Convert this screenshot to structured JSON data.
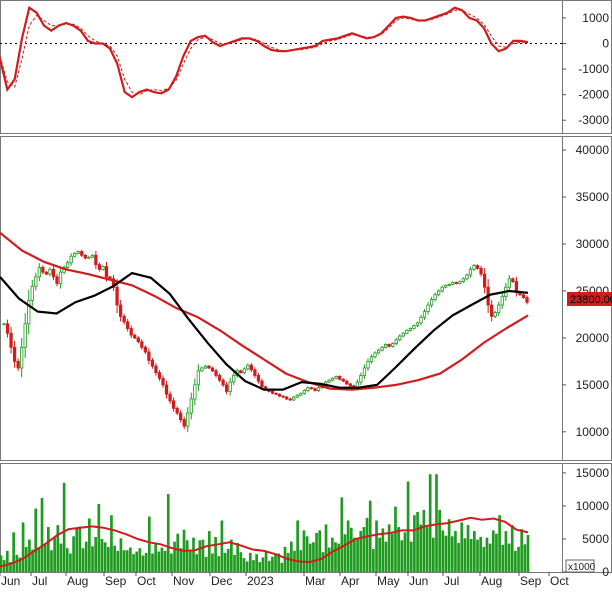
{
  "colors": {
    "red": "#d01c1c",
    "black": "#000000",
    "green": "#1f9c1f",
    "green_dark": "#0b6e0b",
    "grid_axis": "#777777",
    "price_tag_bg": "#d01c1c"
  },
  "x_axis": {
    "labels": [
      "Jun",
      "Jul",
      "Aug",
      "Sep",
      "Oct",
      "Nov",
      "Dec",
      "2023",
      "Mar",
      "Apr",
      "May",
      "Jun",
      "Jul",
      "Aug",
      "Sep",
      "Oct"
    ]
  },
  "chart_data": [
    {
      "type": "line",
      "panel": "oscillator",
      "yticks": [
        1000,
        0,
        -1000,
        -2000,
        -3000
      ],
      "ylim": [
        -3500,
        1700
      ],
      "zero_line": "dotted",
      "series": [
        {
          "style": "solid",
          "color": "red",
          "values": [
            -600,
            -1800,
            -1400,
            200,
            1400,
            1200,
            700,
            500,
            700,
            800,
            700,
            500,
            100,
            0,
            0,
            -200,
            -800,
            -1900,
            -2100,
            -1900,
            -1800,
            -1900,
            -1950,
            -1800,
            -1300,
            -500,
            100,
            250,
            300,
            50,
            -100,
            0,
            100,
            200,
            200,
            100,
            -100,
            -250,
            -300,
            -300,
            -250,
            -200,
            -150,
            -100,
            100,
            150,
            200,
            300,
            400,
            300,
            200,
            250,
            400,
            700,
            1000,
            1050,
            1000,
            900,
            900,
            1000,
            1100,
            1200,
            1400,
            1300,
            1000,
            900,
            600,
            0,
            -300,
            -200,
            100,
            100,
            50
          ]
        },
        {
          "style": "dashed",
          "color": "red",
          "values": [
            -500,
            -1500,
            -1700,
            -600,
            700,
            1100,
            900,
            700,
            700,
            750,
            750,
            600,
            300,
            100,
            0,
            -100,
            -500,
            -1400,
            -1900,
            -2000,
            -1850,
            -1800,
            -1850,
            -1750,
            -1450,
            -800,
            -200,
            150,
            250,
            150,
            0,
            0,
            50,
            150,
            200,
            150,
            0,
            -150,
            -250,
            -300,
            -250,
            -250,
            -200,
            -150,
            0,
            100,
            150,
            250,
            350,
            300,
            250,
            250,
            350,
            600,
            900,
            1000,
            950,
            900,
            900,
            950,
            1050,
            1150,
            1300,
            1300,
            1150,
            1000,
            750,
            300,
            -100,
            -150,
            0,
            50,
            50
          ]
        }
      ]
    },
    {
      "type": "candlestick",
      "panel": "price",
      "yticks": [
        40000,
        35000,
        30000,
        25000,
        20000,
        15000,
        10000
      ],
      "ylim": [
        7000,
        41500
      ],
      "last_price_label": "23800.00",
      "closes": [
        21500,
        20500,
        19000,
        17500,
        16800,
        19000,
        21500,
        24000,
        25500,
        26500,
        27500,
        27000,
        26800,
        27300,
        26500,
        25800,
        27000,
        27500,
        28000,
        28700,
        29000,
        29200,
        28800,
        28500,
        28600,
        28800,
        27800,
        27300,
        27600,
        26500,
        26300,
        25400,
        23500,
        22300,
        21700,
        21000,
        20300,
        20000,
        19600,
        19000,
        18500,
        17600,
        17000,
        16300,
        15700,
        15000,
        14000,
        13300,
        12500,
        12000,
        11300,
        10600,
        12000,
        13500,
        15000,
        16500,
        16800,
        17000,
        16800,
        16500,
        16000,
        15500,
        15000,
        14300,
        15300,
        16000,
        16500,
        16300,
        16700,
        17100,
        16600,
        16000,
        15400,
        14800,
        14500,
        14300,
        14100,
        14000,
        13800,
        13700,
        13500,
        13400,
        13700,
        13900,
        14100,
        14400,
        14700,
        14600,
        14400,
        14700,
        15000,
        15300,
        15500,
        15700,
        15900,
        15600,
        15400,
        15100,
        14900,
        14700,
        15300,
        16000,
        16800,
        17500,
        18000,
        18400,
        18700,
        19000,
        19300,
        19100,
        19400,
        19800,
        20200,
        20500,
        20800,
        21000,
        21300,
        21600,
        22200,
        22800,
        23500,
        24100,
        24600,
        25000,
        25400,
        25600,
        25700,
        25900,
        25800,
        26000,
        26300,
        26700,
        27300,
        27700,
        27400,
        26800,
        25400,
        23500,
        22300,
        22700,
        23500,
        24400,
        25400,
        26300,
        26000,
        24900,
        24600,
        24300,
        23800
      ],
      "ma_short": {
        "color": "black",
        "values": [
          26500,
          24200,
          22800,
          22600,
          23800,
          24500,
          25500,
          26900,
          26400,
          24700,
          22000,
          19500,
          17200,
          15400,
          14500,
          14500,
          15300,
          15100,
          14700,
          14700,
          15000,
          16900,
          18900,
          20800,
          22400,
          23500,
          24600,
          25000,
          24800
        ]
      },
      "ma_long": {
        "color": "red",
        "values": [
          31200,
          29300,
          28100,
          27300,
          26800,
          26200,
          25600,
          24500,
          23200,
          22200,
          20800,
          19200,
          17700,
          16200,
          15300,
          14600,
          14500,
          14700,
          15000,
          15500,
          16200,
          17700,
          19500,
          21000,
          22400
        ]
      }
    },
    {
      "type": "bar",
      "panel": "volume",
      "unit_label": "x1000",
      "yticks": [
        15000,
        10000,
        5000,
        0
      ],
      "ylim": [
        0,
        16500
      ],
      "values": [
        2500,
        1800,
        3200,
        1500,
        6000,
        2600,
        2200,
        7500,
        3800,
        4900,
        3400,
        9600,
        3700,
        11200,
        4200,
        6800,
        3300,
        5200,
        7100,
        4300,
        13500,
        3600,
        2800,
        5400,
        6700,
        6900,
        3600,
        4600,
        8100,
        3900,
        5300,
        10300,
        5000,
        4500,
        3800,
        8600,
        4000,
        3200,
        5100,
        3300,
        3300,
        3700,
        2700,
        3100,
        3600,
        2500,
        2900,
        8400,
        2800,
        4400,
        3100,
        3700,
        3200,
        11800,
        2800,
        4600,
        5800,
        3600,
        6400,
        4800,
        3300,
        5200,
        2700,
        4800,
        4900,
        2300,
        6200,
        2800,
        5300,
        2400,
        7800,
        2900,
        3500,
        4900,
        2600,
        4400,
        3000,
        2100,
        1600,
        2900,
        1800,
        2700,
        1500,
        2200,
        3000,
        1700,
        2300,
        2600,
        2800,
        1400,
        3800,
        2900,
        4600,
        3200,
        7800,
        3300,
        6300,
        5400,
        4300,
        4500,
        5900,
        6300,
        3000,
        7200,
        3700,
        5200,
        4500,
        4300,
        11300,
        5700,
        7800,
        6700,
        5200,
        5100,
        6200,
        6800,
        8200,
        10800,
        3500,
        7800,
        5200,
        6600,
        4600,
        7200,
        5800,
        9900,
        6800,
        4800,
        6000,
        13700,
        4600,
        8600,
        9100,
        7200,
        9400,
        6800,
        14800,
        5200,
        14800,
        9400,
        6300,
        5500,
        8000,
        5400,
        6200,
        4400,
        7500,
        5100,
        7100,
        5000,
        6200,
        4900,
        5300,
        3800,
        5200,
        4300,
        6300,
        5800,
        8600,
        4100,
        6200,
        4300,
        7100,
        3200,
        3800,
        6500,
        4200,
        5600
      ],
      "ma": {
        "color": "red",
        "values": [
          800,
          1300,
          2000,
          3200,
          4300,
          5600,
          6500,
          6700,
          6900,
          6700,
          6300,
          5700,
          5000,
          4500,
          4200,
          3600,
          3200,
          3300,
          3900,
          4200,
          4500,
          4000,
          3400,
          3200,
          2700,
          2000,
          1600,
          1500,
          2000,
          3100,
          4000,
          5000,
          5400,
          5700,
          5900,
          6300,
          6300,
          6900,
          7200,
          7400,
          7800,
          8200,
          7900,
          8100,
          7600,
          6400,
          6000
        ]
      }
    }
  ]
}
